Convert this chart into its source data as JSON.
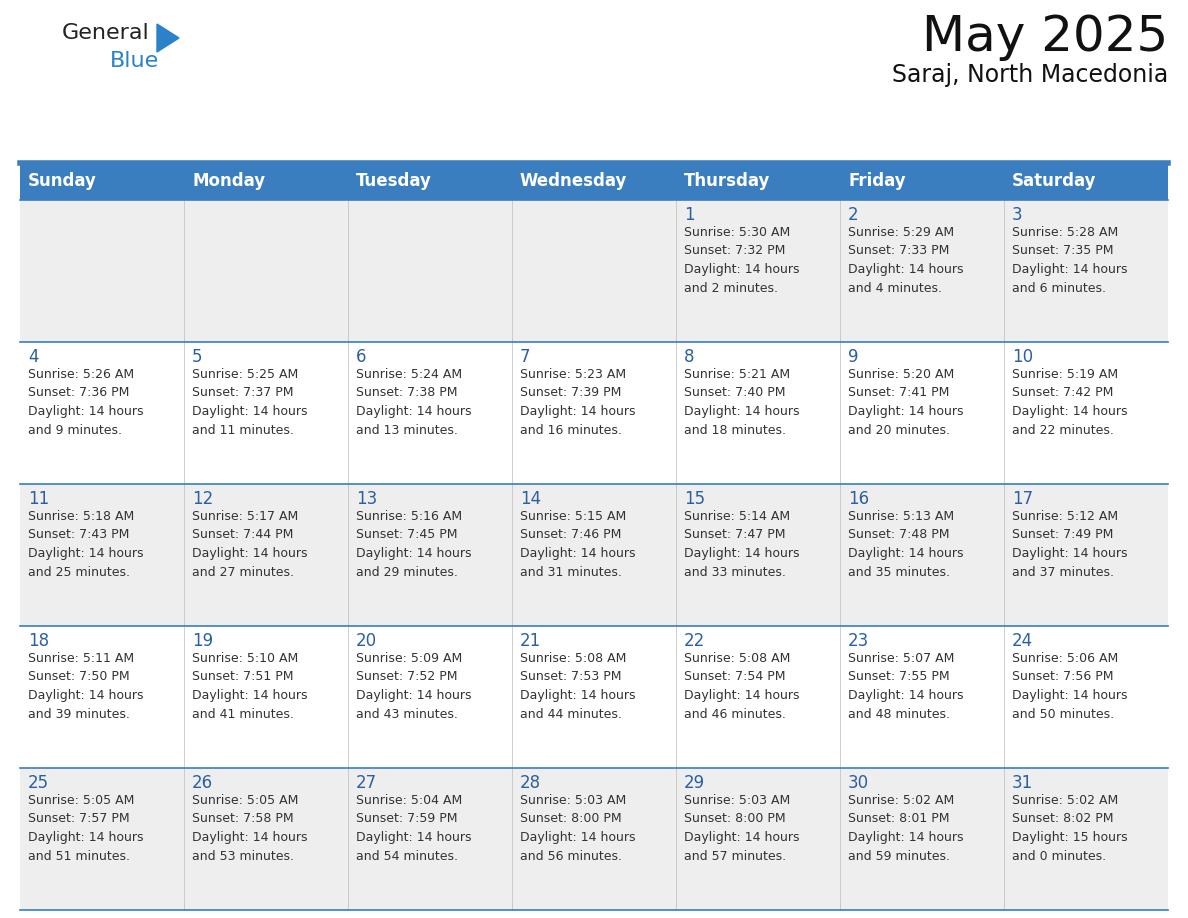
{
  "title": "May 2025",
  "subtitle": "Saraj, North Macedonia",
  "days_of_week": [
    "Sunday",
    "Monday",
    "Tuesday",
    "Wednesday",
    "Thursday",
    "Friday",
    "Saturday"
  ],
  "header_bg": "#3A7EBF",
  "header_text": "#FFFFFF",
  "odd_row_bg": "#EEEEEE",
  "even_row_bg": "#FFFFFF",
  "day_number_color": "#2B5FA3",
  "cell_text_color": "#333333",
  "border_color": "#3A7EBF",
  "title_color": "#111111",
  "subtitle_color": "#111111",
  "logo_general_color": "#222222",
  "logo_blue_color": "#2B82C9",
  "title_fontsize": 36,
  "subtitle_fontsize": 17,
  "header_fontsize": 12,
  "day_num_fontsize": 12,
  "cell_fontsize": 9,
  "calendar_data": [
    [
      "",
      "",
      "",
      "",
      "1\nSunrise: 5:30 AM\nSunset: 7:32 PM\nDaylight: 14 hours\nand 2 minutes.",
      "2\nSunrise: 5:29 AM\nSunset: 7:33 PM\nDaylight: 14 hours\nand 4 minutes.",
      "3\nSunrise: 5:28 AM\nSunset: 7:35 PM\nDaylight: 14 hours\nand 6 minutes."
    ],
    [
      "4\nSunrise: 5:26 AM\nSunset: 7:36 PM\nDaylight: 14 hours\nand 9 minutes.",
      "5\nSunrise: 5:25 AM\nSunset: 7:37 PM\nDaylight: 14 hours\nand 11 minutes.",
      "6\nSunrise: 5:24 AM\nSunset: 7:38 PM\nDaylight: 14 hours\nand 13 minutes.",
      "7\nSunrise: 5:23 AM\nSunset: 7:39 PM\nDaylight: 14 hours\nand 16 minutes.",
      "8\nSunrise: 5:21 AM\nSunset: 7:40 PM\nDaylight: 14 hours\nand 18 minutes.",
      "9\nSunrise: 5:20 AM\nSunset: 7:41 PM\nDaylight: 14 hours\nand 20 minutes.",
      "10\nSunrise: 5:19 AM\nSunset: 7:42 PM\nDaylight: 14 hours\nand 22 minutes."
    ],
    [
      "11\nSunrise: 5:18 AM\nSunset: 7:43 PM\nDaylight: 14 hours\nand 25 minutes.",
      "12\nSunrise: 5:17 AM\nSunset: 7:44 PM\nDaylight: 14 hours\nand 27 minutes.",
      "13\nSunrise: 5:16 AM\nSunset: 7:45 PM\nDaylight: 14 hours\nand 29 minutes.",
      "14\nSunrise: 5:15 AM\nSunset: 7:46 PM\nDaylight: 14 hours\nand 31 minutes.",
      "15\nSunrise: 5:14 AM\nSunset: 7:47 PM\nDaylight: 14 hours\nand 33 minutes.",
      "16\nSunrise: 5:13 AM\nSunset: 7:48 PM\nDaylight: 14 hours\nand 35 minutes.",
      "17\nSunrise: 5:12 AM\nSunset: 7:49 PM\nDaylight: 14 hours\nand 37 minutes."
    ],
    [
      "18\nSunrise: 5:11 AM\nSunset: 7:50 PM\nDaylight: 14 hours\nand 39 minutes.",
      "19\nSunrise: 5:10 AM\nSunset: 7:51 PM\nDaylight: 14 hours\nand 41 minutes.",
      "20\nSunrise: 5:09 AM\nSunset: 7:52 PM\nDaylight: 14 hours\nand 43 minutes.",
      "21\nSunrise: 5:08 AM\nSunset: 7:53 PM\nDaylight: 14 hours\nand 44 minutes.",
      "22\nSunrise: 5:08 AM\nSunset: 7:54 PM\nDaylight: 14 hours\nand 46 minutes.",
      "23\nSunrise: 5:07 AM\nSunset: 7:55 PM\nDaylight: 14 hours\nand 48 minutes.",
      "24\nSunrise: 5:06 AM\nSunset: 7:56 PM\nDaylight: 14 hours\nand 50 minutes."
    ],
    [
      "25\nSunrise: 5:05 AM\nSunset: 7:57 PM\nDaylight: 14 hours\nand 51 minutes.",
      "26\nSunrise: 5:05 AM\nSunset: 7:58 PM\nDaylight: 14 hours\nand 53 minutes.",
      "27\nSunrise: 5:04 AM\nSunset: 7:59 PM\nDaylight: 14 hours\nand 54 minutes.",
      "28\nSunrise: 5:03 AM\nSunset: 8:00 PM\nDaylight: 14 hours\nand 56 minutes.",
      "29\nSunrise: 5:03 AM\nSunset: 8:00 PM\nDaylight: 14 hours\nand 57 minutes.",
      "30\nSunrise: 5:02 AM\nSunset: 8:01 PM\nDaylight: 14 hours\nand 59 minutes.",
      "31\nSunrise: 5:02 AM\nSunset: 8:02 PM\nDaylight: 15 hours\nand 0 minutes."
    ]
  ]
}
